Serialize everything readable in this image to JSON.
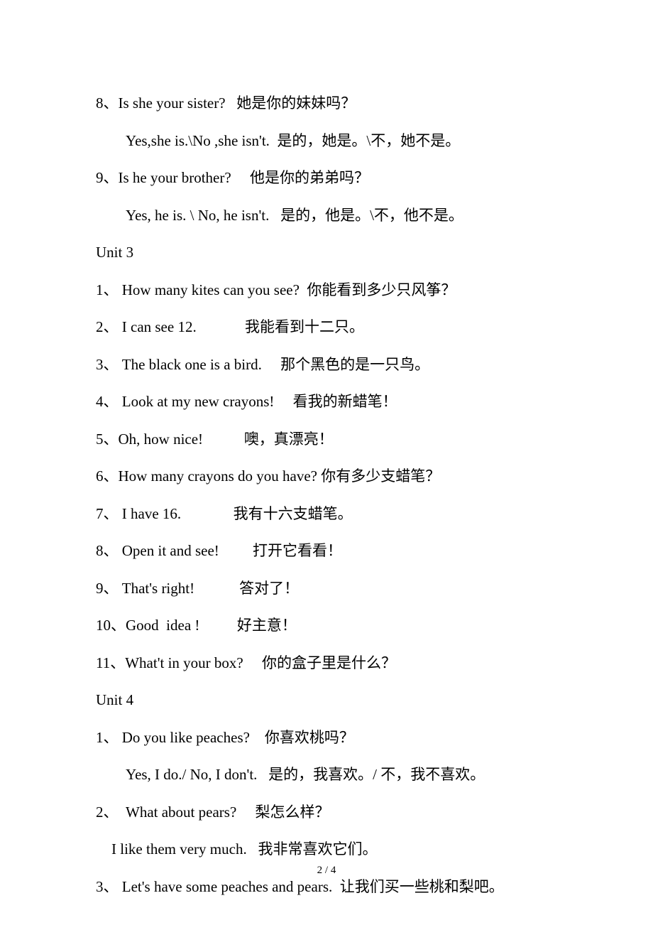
{
  "lines": [
    {
      "cls": "line",
      "text": "8、Is she your sister?   她是你的妹妹吗？"
    },
    {
      "cls": "line indent",
      "text": "Yes,she is.\\No ,she isn't.  是的，她是。\\不，她不是。"
    },
    {
      "cls": "line",
      "text": "9、Is he your brother?     他是你的弟弟吗？"
    },
    {
      "cls": "line indent",
      "text": "Yes, he is. \\ No, he isn't.   是的，他是。\\不，他不是。"
    },
    {
      "cls": "line",
      "text": "Unit 3"
    },
    {
      "cls": "line",
      "text": "1、 How many kites can you see?  你能看到多少只风筝？"
    },
    {
      "cls": "line",
      "text": "2、 I can see 12.             我能看到十二只。"
    },
    {
      "cls": "line",
      "text": "3、 The black one is a bird.     那个黑色的是一只鸟。"
    },
    {
      "cls": "line",
      "text": "4、 Look at my new crayons!     看我的新蜡笔！"
    },
    {
      "cls": "line",
      "text": "5、Oh, how nice!           噢，真漂亮！"
    },
    {
      "cls": "line",
      "text": "6、How many crayons do you have? 你有多少支蜡笔？"
    },
    {
      "cls": "line",
      "text": "7、 I have 16.              我有十六支蜡笔。"
    },
    {
      "cls": "line",
      "text": "8、 Open it and see!         打开它看看！"
    },
    {
      "cls": "line",
      "text": "9、 That's right!            答对了！"
    },
    {
      "cls": "line",
      "text": "10、Good  idea !          好主意！"
    },
    {
      "cls": "line",
      "text": "11、What't in your box?     你的盒子里是什么？"
    },
    {
      "cls": "line",
      "text": "Unit 4"
    },
    {
      "cls": "line",
      "text": "1、 Do you like peaches?    你喜欢桃吗？"
    },
    {
      "cls": "line indent",
      "text": "Yes, I do./ No, I don't.   是的，我喜欢。/ 不，我不喜欢。"
    },
    {
      "cls": "line",
      "text": "2、  What about pears?     梨怎么样？"
    },
    {
      "cls": "line indent-small",
      "text": "I like them very much.   我非常喜欢它们。"
    },
    {
      "cls": "line",
      "text": "3、 Let's have some peaches and pears.  让我们买一些桃和梨吧。"
    }
  ],
  "pageNumber": "2 / 4"
}
